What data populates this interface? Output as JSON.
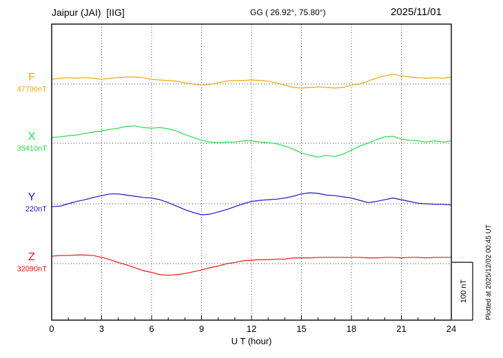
{
  "header": {
    "station": "Jaipur (JAI)  [IIG]",
    "coords": "GG ( 26.92°, 75.80°)",
    "date": "2025/11/01"
  },
  "xaxis": {
    "label": "U T (hour)",
    "ticks": [
      0,
      3,
      6,
      9,
      12,
      15,
      18,
      21,
      24
    ]
  },
  "scale_bar": {
    "label": "100 nT",
    "nT": 100
  },
  "plotted_at": "Plotted at 2025/12/02 00:45 UT",
  "chart_data": {
    "type": "line",
    "title": "Jaipur (JAI) [IIG] magnetogram 2025/11/01",
    "xlabel": "U T (hour)",
    "x_range": [
      0,
      24
    ],
    "x_start": 0,
    "x_step_hours": 0.5,
    "grid": "dotted vertical every 3 h, dotted baseline per component",
    "scale_nT_per_division": 100,
    "series": [
      {
        "name": "F",
        "color": "#f0a400",
        "baseline_nT": 47790,
        "baseline_label": "47790nT",
        "offsets_nT": [
          8,
          10,
          11,
          10,
          11,
          10,
          8,
          10,
          11,
          12,
          12,
          11,
          8,
          7,
          6,
          5,
          2,
          0,
          -2,
          -1,
          2,
          5,
          6,
          6,
          7,
          6,
          5,
          2,
          -2,
          -6,
          -7,
          -6,
          -5,
          -6,
          -7,
          -6,
          -2,
          0,
          5,
          10,
          14,
          17,
          14,
          12,
          11,
          10,
          11,
          10,
          12
        ]
      },
      {
        "name": "X",
        "color": "#1ddd44",
        "baseline_nT": 35410,
        "baseline_label": "35410nT",
        "offsets_nT": [
          10,
          11,
          13,
          14,
          17,
          19,
          21,
          24,
          26,
          29,
          30,
          27,
          26,
          27,
          25,
          21,
          15,
          10,
          5,
          2,
          1,
          2,
          2,
          4,
          4,
          2,
          1,
          -1,
          -5,
          -10,
          -17,
          -21,
          -24,
          -21,
          -23,
          -19,
          -12,
          -5,
          0,
          6,
          11,
          12,
          7,
          5,
          4,
          2,
          4,
          2,
          4
        ]
      },
      {
        "name": "Y",
        "color": "#1515cc",
        "baseline_nT": 220,
        "baseline_label": "220nT",
        "offsets_nT": [
          -5,
          -4,
          0,
          4,
          7,
          11,
          14,
          17,
          17,
          15,
          13,
          11,
          10,
          7,
          2,
          -4,
          -10,
          -15,
          -19,
          -18,
          -14,
          -10,
          -5,
          0,
          4,
          6,
          7,
          8,
          10,
          13,
          17,
          19,
          18,
          15,
          14,
          12,
          10,
          6,
          2,
          4,
          7,
          10,
          7,
          4,
          1,
          0,
          -1,
          -1,
          -2
        ]
      },
      {
        "name": "Z",
        "color": "#ee1111",
        "baseline_nT": 32090,
        "baseline_label": "32090nT",
        "offsets_nT": [
          13,
          14,
          14,
          15,
          15,
          14,
          11,
          7,
          2,
          -2,
          -7,
          -12,
          -15,
          -19,
          -20,
          -19,
          -17,
          -14,
          -11,
          -7,
          -4,
          0,
          2,
          5,
          6,
          7,
          7,
          8,
          8,
          10,
          10,
          10,
          11,
          11,
          11,
          11,
          11,
          11,
          10,
          10,
          11,
          11,
          10,
          11,
          11,
          10,
          11,
          11,
          11
        ]
      }
    ]
  }
}
